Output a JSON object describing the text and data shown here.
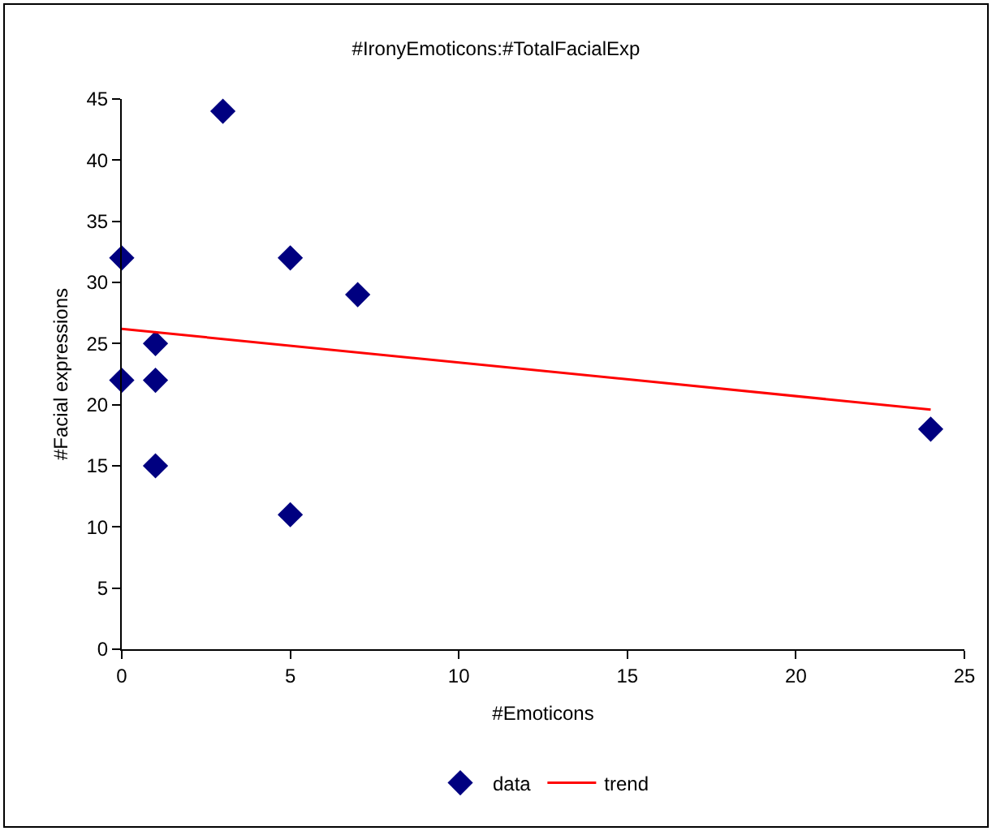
{
  "chart_data": {
    "type": "scatter",
    "title": "#IronyEmoticons:#TotalFacialExp",
    "xlabel": "#Emoticons",
    "ylabel": "#Facial expressions",
    "xlim": [
      0,
      25
    ],
    "xticks": [
      0,
      5,
      10,
      15,
      20,
      25
    ],
    "ylim": [
      0,
      45
    ],
    "yticks": [
      0,
      5,
      10,
      15,
      20,
      25,
      30,
      35,
      40,
      45
    ],
    "grid": false,
    "legend": "bottom",
    "marker": "diamond",
    "series": [
      {
        "name": "data",
        "color": "#000080",
        "x": [
          0,
          0,
          1,
          1,
          1,
          3,
          5,
          5,
          7,
          24
        ],
        "values": [
          32,
          22,
          25,
          22,
          15,
          44,
          32,
          11,
          29,
          18
        ]
      },
      {
        "name": "trend",
        "type": "line",
        "color": "#ff0000",
        "marker": "none",
        "line_style": "solid",
        "x": [
          0,
          24
        ],
        "values": [
          26.2,
          19.6
        ]
      }
    ]
  }
}
